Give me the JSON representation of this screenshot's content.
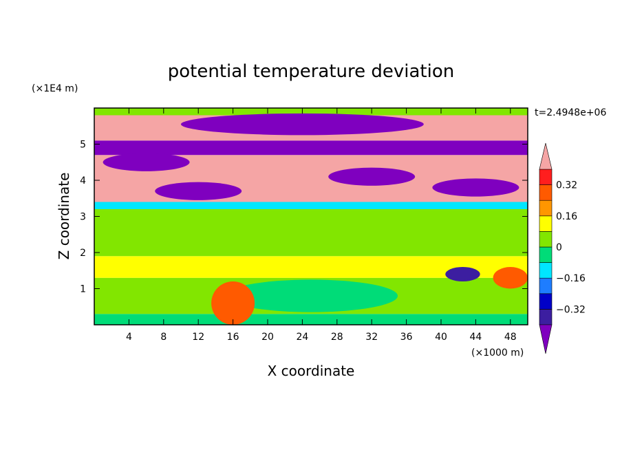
{
  "chart_data": {
    "type": "heatmap",
    "title": "potential temperature deviation",
    "xlabel": "X coordinate",
    "ylabel": "Z coordinate",
    "x_unit": "(×1000 m)",
    "y_unit": "(×1E4 m)",
    "time_label": "t=2.4948e+06",
    "xlim": [
      0,
      50
    ],
    "ylim": [
      0,
      6
    ],
    "x_ticks": [
      4,
      8,
      12,
      16,
      20,
      24,
      28,
      32,
      36,
      40,
      44,
      48
    ],
    "y_ticks": [
      1,
      2,
      3,
      4,
      5
    ],
    "colorbar": {
      "levels": [
        -0.4,
        -0.32,
        -0.24,
        -0.16,
        -0.08,
        0,
        0.08,
        0.16,
        0.24,
        0.32,
        0.4
      ],
      "labels": [
        "0.32",
        "0.16",
        "0",
        "−0.16",
        "−0.32"
      ],
      "colors_low_to_high": [
        "#7f00bf",
        "#3c1ea0",
        "#0000c8",
        "#1e7dff",
        "#00e6ff",
        "#00dc78",
        "#82e600",
        "#ffff00",
        "#ff9600",
        "#ff5a00",
        "#ff1e1e",
        "#f5a5a5"
      ],
      "extend": "both"
    },
    "bands": [
      {
        "z": [
          0.0,
          0.3
        ],
        "value": -0.05
      },
      {
        "z": [
          0.3,
          1.3
        ],
        "value": 0.05
      },
      {
        "z": [
          1.3,
          1.9
        ],
        "value": 0.12
      },
      {
        "z": [
          1.9,
          3.2
        ],
        "value": 0.04
      },
      {
        "z": [
          3.2,
          3.4
        ],
        "value": -0.12
      },
      {
        "z": [
          3.4,
          4.7
        ],
        "value": 0.45
      },
      {
        "z": [
          4.7,
          5.1
        ],
        "value": -0.45
      },
      {
        "z": [
          5.1,
          5.8
        ],
        "value": 0.45
      },
      {
        "z": [
          5.8,
          6.0
        ],
        "value": 0.04
      }
    ],
    "features": [
      {
        "shape": "cold-lens",
        "x_center": 24,
        "z_center": 5.55,
        "value": -0.45
      },
      {
        "shape": "cold-patch",
        "x_center": 6,
        "z_center": 4.5,
        "value": -0.45
      },
      {
        "shape": "cold-patch",
        "x_center": 32,
        "z_center": 4.1,
        "value": -0.45
      },
      {
        "shape": "cold-patch",
        "x_center": 12,
        "z_center": 3.7,
        "value": -0.45
      },
      {
        "shape": "cold-patch",
        "x_center": 44,
        "z_center": 3.8,
        "value": -0.45
      },
      {
        "shape": "cold-pool",
        "x_center": 25,
        "z_center": 0.8,
        "value": -0.05
      },
      {
        "shape": "warm-plume",
        "x_center": 16,
        "z_center": 0.6,
        "value": 0.3
      },
      {
        "shape": "cold-vortex",
        "x_center": 42.5,
        "z_center": 1.4,
        "value": -0.35
      },
      {
        "shape": "warm-vortex",
        "x_center": 48,
        "z_center": 1.3,
        "value": 0.3
      }
    ]
  }
}
